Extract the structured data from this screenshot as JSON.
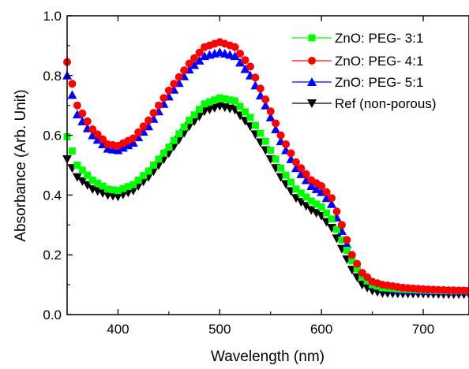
{
  "chart_data": {
    "type": "scatter",
    "xlabel": "Wavelength (nm)",
    "ylabel": "Absorbance (Arb. Unit)",
    "xlim": [
      350,
      745
    ],
    "ylim": [
      0.0,
      1.0
    ],
    "x_ticks": [
      400,
      500,
      600,
      700
    ],
    "x_tick_labels": [
      "400",
      "500",
      "600",
      "700"
    ],
    "y_ticks": [
      0.0,
      0.2,
      0.4,
      0.6,
      0.8,
      1.0
    ],
    "y_tick_labels": [
      "0.0",
      "0.2",
      "0.4",
      "0.6",
      "0.8",
      "1.0"
    ],
    "grid": false,
    "legend_position": "top-right",
    "x_step": 5,
    "series": [
      {
        "name": "ZnO: PEG- 3:1",
        "color": "#00ff00",
        "marker": "square",
        "knots_x": [
          350,
          360,
          375,
          390,
          400,
          415,
          430,
          450,
          470,
          485,
          500,
          515,
          530,
          545,
          560,
          575,
          590,
          600,
          610,
          620,
          630,
          640,
          650,
          660,
          680,
          700,
          720,
          745
        ],
        "knots_y": [
          0.595,
          0.5,
          0.45,
          0.42,
          0.415,
          0.435,
          0.48,
          0.56,
          0.65,
          0.705,
          0.725,
          0.715,
          0.66,
          0.58,
          0.49,
          0.42,
          0.38,
          0.36,
          0.32,
          0.25,
          0.18,
          0.125,
          0.1,
          0.09,
          0.085,
          0.082,
          0.08,
          0.08
        ]
      },
      {
        "name": "ZnO: PEG- 4:1",
        "color": "#ff0000",
        "marker": "circle",
        "knots_x": [
          350,
          360,
          375,
          390,
          400,
          415,
          430,
          450,
          470,
          485,
          500,
          515,
          530,
          545,
          560,
          575,
          590,
          600,
          610,
          620,
          630,
          640,
          650,
          660,
          680,
          700,
          720,
          745
        ],
        "knots_y": [
          0.845,
          0.7,
          0.62,
          0.57,
          0.565,
          0.59,
          0.65,
          0.75,
          0.84,
          0.895,
          0.912,
          0.895,
          0.83,
          0.72,
          0.6,
          0.51,
          0.45,
          0.43,
          0.39,
          0.3,
          0.2,
          0.14,
          0.11,
          0.1,
          0.09,
          0.085,
          0.082,
          0.08
        ]
      },
      {
        "name": "ZnO: PEG- 5:1",
        "color": "#0000ff",
        "marker": "triangle-up",
        "knots_x": [
          350,
          360,
          375,
          390,
          400,
          415,
          430,
          450,
          470,
          485,
          500,
          515,
          530,
          545,
          560,
          575,
          590,
          600,
          610,
          620,
          630,
          640,
          650,
          660,
          680,
          700,
          720,
          745
        ],
        "knots_y": [
          0.8,
          0.67,
          0.6,
          0.555,
          0.55,
          0.575,
          0.63,
          0.73,
          0.82,
          0.865,
          0.878,
          0.865,
          0.8,
          0.7,
          0.58,
          0.49,
          0.43,
          0.41,
          0.37,
          0.28,
          0.19,
          0.13,
          0.1,
          0.09,
          0.082,
          0.08,
          0.078,
          0.078
        ]
      },
      {
        "name": "Ref (non-porous)",
        "color": "#000000",
        "marker": "triangle-down",
        "knots_x": [
          350,
          360,
          375,
          390,
          400,
          415,
          430,
          450,
          470,
          485,
          500,
          515,
          530,
          545,
          560,
          575,
          590,
          600,
          610,
          620,
          630,
          640,
          650,
          660,
          680,
          700,
          720,
          745
        ],
        "knots_y": [
          0.52,
          0.46,
          0.42,
          0.4,
          0.395,
          0.415,
          0.46,
          0.54,
          0.63,
          0.68,
          0.698,
          0.685,
          0.63,
          0.55,
          0.46,
          0.39,
          0.35,
          0.33,
          0.29,
          0.22,
          0.15,
          0.1,
          0.08,
          0.072,
          0.07,
          0.07,
          0.068,
          0.068
        ]
      }
    ]
  }
}
